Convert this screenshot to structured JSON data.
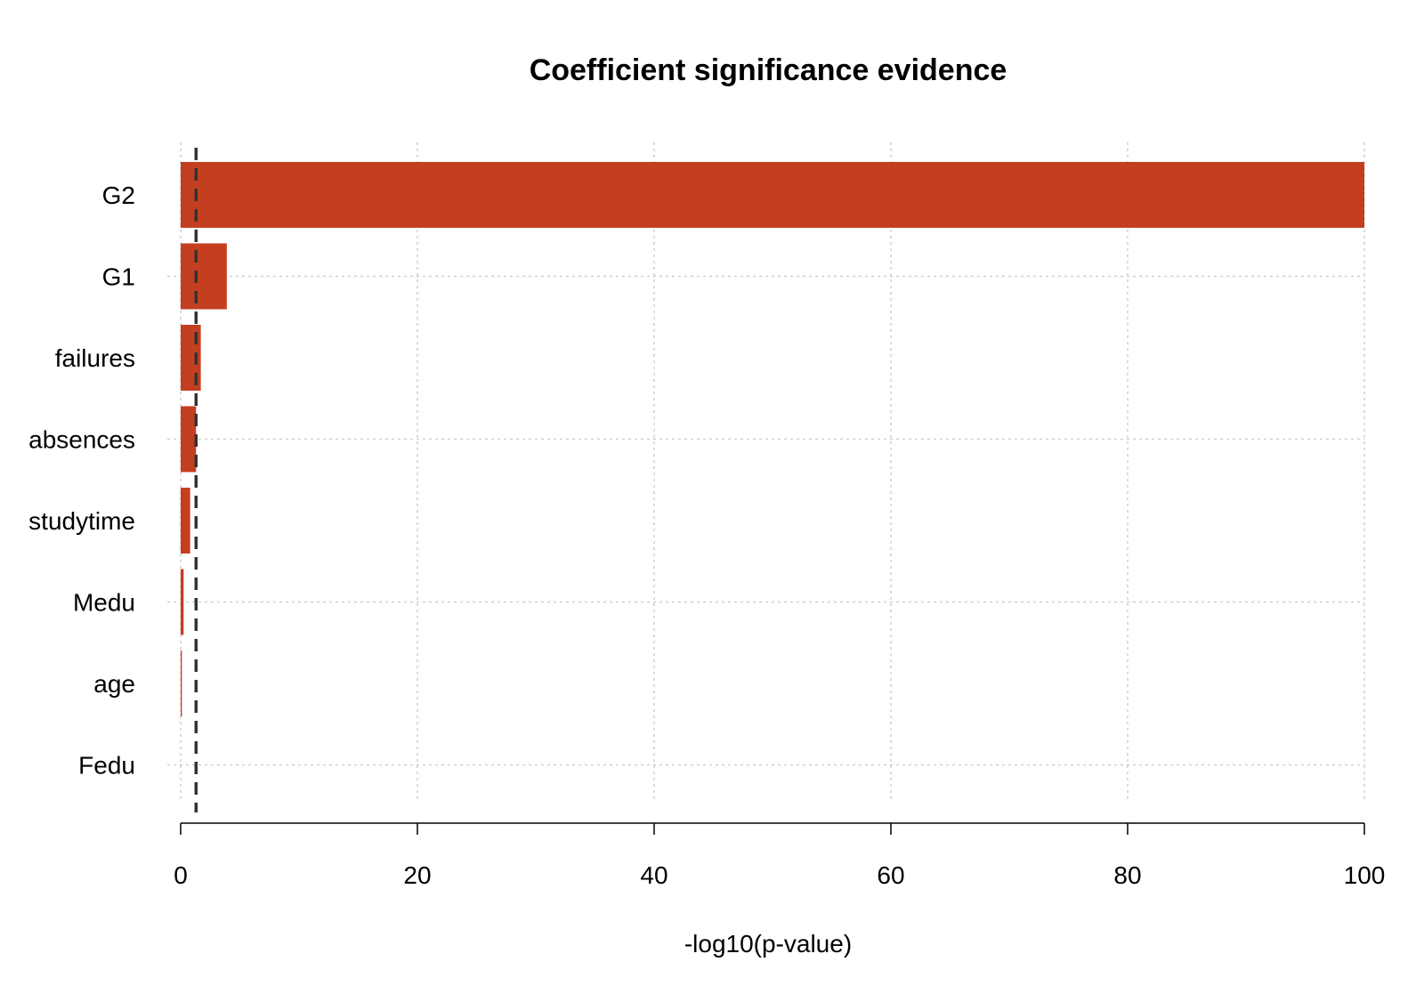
{
  "chart_data": {
    "type": "bar",
    "orientation": "horizontal",
    "title": "Coefficient significance evidence",
    "xlabel": "-log10(p-value)",
    "ylabel": "",
    "xlim": [
      0,
      100
    ],
    "xticks": [
      0,
      20,
      40,
      60,
      80,
      100
    ],
    "grid": true,
    "categories": [
      "G2",
      "G1",
      "failures",
      "absences",
      "studytime",
      "Medu",
      "age",
      "Fedu"
    ],
    "values": [
      100,
      3.9,
      1.7,
      1.3,
      0.8,
      0.25,
      0.1,
      0.0
    ],
    "reference_line": {
      "x": 1.3,
      "style": "dashed"
    },
    "bar_color": "#C43E20"
  }
}
